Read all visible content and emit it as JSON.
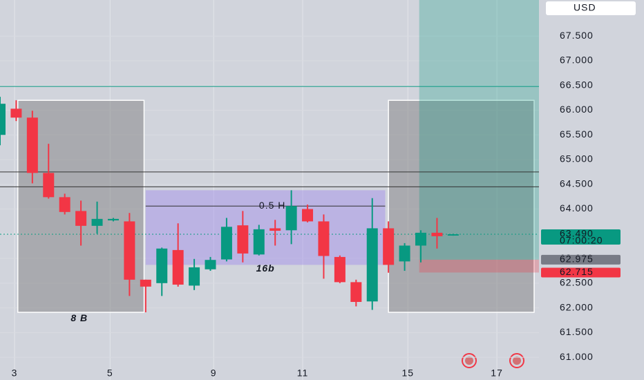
{
  "chart_data": {
    "type": "candlestick",
    "currency": "USD",
    "x": [
      0,
      1,
      2,
      3,
      4,
      5,
      6,
      7,
      8,
      9,
      10,
      11,
      12,
      13,
      14,
      15,
      16,
      17,
      18,
      19,
      20,
      21,
      22,
      23,
      24,
      25,
      26,
      27,
      28
    ],
    "open": [
      65.5,
      66.03,
      65.85,
      64.73,
      64.24,
      63.96,
      63.66,
      63.77,
      63.75,
      62.57,
      62.5,
      63.17,
      62.45,
      62.78,
      62.98,
      63.67,
      63.08,
      63.61,
      63.57,
      64.0,
      63.75,
      63.03,
      62.52,
      62.13,
      63.61,
      62.94,
      63.26,
      63.52,
      63.47
    ],
    "high": [
      66.27,
      66.2,
      65.99,
      65.32,
      64.31,
      64.17,
      64.15,
      63.82,
      63.92,
      62.57,
      63.22,
      63.71,
      62.99,
      63.03,
      63.82,
      63.96,
      63.68,
      63.78,
      64.38,
      64.09,
      63.89,
      63.06,
      62.57,
      64.22,
      63.75,
      63.31,
      63.57,
      63.82,
      63.5
    ],
    "low": [
      65.29,
      65.78,
      64.52,
      64.21,
      63.89,
      63.26,
      63.5,
      63.75,
      62.24,
      61.91,
      62.24,
      62.43,
      62.36,
      62.75,
      62.94,
      62.92,
      63.06,
      63.26,
      63.29,
      63.73,
      62.59,
      62.5,
      62.03,
      61.96,
      62.71,
      62.75,
      62.92,
      63.2,
      63.46
    ],
    "close": [
      66.13,
      65.85,
      64.73,
      64.24,
      63.94,
      63.66,
      63.8,
      63.8,
      62.57,
      62.43,
      63.2,
      62.47,
      62.82,
      62.97,
      63.64,
      63.1,
      63.59,
      63.56,
      64.06,
      63.75,
      63.05,
      62.52,
      62.12,
      63.61,
      62.87,
      63.26,
      63.52,
      63.45,
      63.49
    ],
    "up_color": "#089981",
    "down_color": "#f23645",
    "xlim": [
      0,
      33.3
    ],
    "ylim": [
      60.54,
      68.23
    ],
    "xticks": [
      {
        "value": 0.9,
        "label": "3"
      },
      {
        "value": 6.8,
        "label": "5"
      },
      {
        "value": 13.2,
        "label": "9"
      },
      {
        "value": 18.7,
        "label": "11"
      },
      {
        "value": 25.2,
        "label": "15"
      },
      {
        "value": 30.7,
        "label": "17"
      }
    ],
    "yticks": [
      {
        "value": 61,
        "label": "61.000"
      },
      {
        "value": 61.5,
        "label": "61.500"
      },
      {
        "value": 62,
        "label": "62.000"
      },
      {
        "value": 62.5,
        "label": "62.500"
      },
      {
        "value": 63,
        "label": "63.000"
      },
      {
        "value": 63.5,
        "label": "63.500"
      },
      {
        "value": 64,
        "label": "64.000"
      },
      {
        "value": 64.5,
        "label": "64.500"
      },
      {
        "value": 65,
        "label": "65.000"
      },
      {
        "value": 65.5,
        "label": "65.500"
      },
      {
        "value": 66,
        "label": "66.000"
      },
      {
        "value": 66.5,
        "label": "66.500"
      },
      {
        "value": 67,
        "label": "67.000"
      },
      {
        "value": 67.5,
        "label": "67.500"
      }
    ],
    "zones": [
      {
        "x": [
          1.1,
          8.9
        ],
        "y": [
          61.91,
          66.2
        ],
        "color": "rgba(120,120,120,0.45)"
      },
      {
        "x": [
          9.0,
          23.8
        ],
        "y": [
          62.87,
          64.38
        ],
        "color": "rgba(160,140,235,0.45)"
      },
      {
        "x": [
          24.0,
          33.0
        ],
        "y": [
          61.91,
          66.2
        ],
        "color": "rgba(120,120,120,0.45)"
      },
      {
        "x": [
          25.9,
          33.3
        ],
        "y": [
          62.975,
          68.23
        ],
        "color": "rgba(8,153,129,0.28)"
      },
      {
        "x": [
          25.9,
          33.3
        ],
        "y": [
          62.715,
          62.975
        ],
        "color": "rgba(242,54,69,0.28)"
      }
    ],
    "levels": [
      {
        "value": 66.48,
        "color": "#089981"
      },
      {
        "value": 64.75,
        "color": "#333333"
      },
      {
        "value": 64.45,
        "color": "#333333"
      },
      {
        "value": 64.06,
        "color": "#333333",
        "x": [
          9.0,
          23.8
        ],
        "label": "0.5 H"
      }
    ],
    "annotations": [
      {
        "text": "8 B",
        "x": 4.9,
        "y": 61.78
      },
      {
        "text": "16b",
        "x": 16.4,
        "y": 62.79
      }
    ],
    "price_labels": [
      {
        "value": 63.49,
        "label": "63.490",
        "countdown": "07:00:20",
        "color": "#089981"
      },
      {
        "value": 62.975,
        "label": "62.975",
        "color": "#787b86"
      },
      {
        "value": 62.715,
        "label": "62.715",
        "color": "#f23645"
      }
    ]
  }
}
